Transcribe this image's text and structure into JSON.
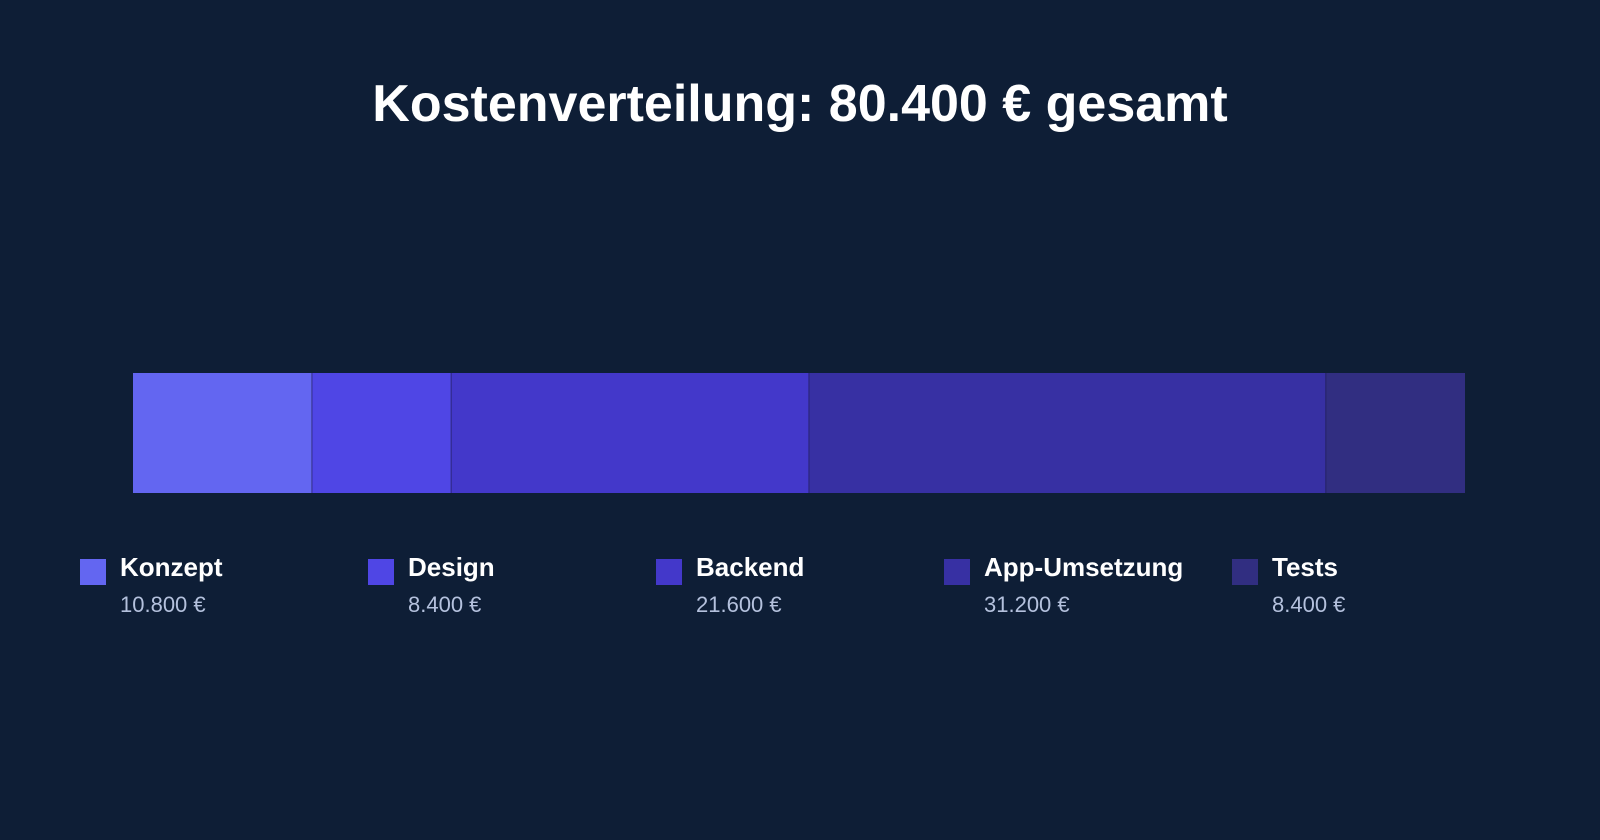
{
  "chart_data": {
    "type": "bar",
    "orientation": "horizontal-stacked",
    "title": "Kostenverteilung: 80.400 € gesamt",
    "total": 80400,
    "unit": "€",
    "legend_position": "bottom",
    "grid": false,
    "series": [
      {
        "name": "Konzept",
        "value": 10800,
        "value_label": "10.800 €",
        "color": "#6366f1"
      },
      {
        "name": "Design",
        "value": 8400,
        "value_label": "8.400 €",
        "color": "#4f46e5"
      },
      {
        "name": "Backend",
        "value": 21600,
        "value_label": "21.600 €",
        "color": "#4338ca"
      },
      {
        "name": "App-Umsetzung",
        "value": 31200,
        "value_label": "31.200 €",
        "color": "#3730a3"
      },
      {
        "name": "Tests",
        "value": 8400,
        "value_label": "8.400 €",
        "color": "#312e81"
      }
    ]
  }
}
